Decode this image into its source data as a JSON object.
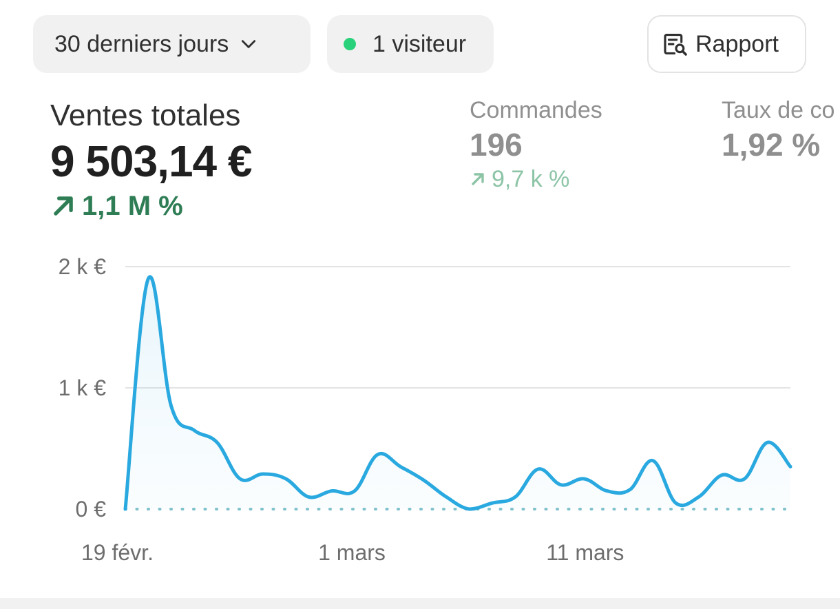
{
  "filters": {
    "date_range": "30 derniers jours",
    "visitors": "1 visiteur",
    "report_button": "Rapport"
  },
  "metrics": {
    "total_sales": {
      "label": "Ventes totales",
      "value": "9 503,14 €",
      "delta": "1,1 M %"
    },
    "orders": {
      "label": "Commandes",
      "value": "196",
      "delta": "9,7 k %"
    },
    "conversion": {
      "label": "Taux de co",
      "value": "1,92 %"
    }
  },
  "colors": {
    "line": "#29a9df",
    "positive": "#2e7d55",
    "positive_muted": "#8cc4a6",
    "live_dot": "#29d17a"
  },
  "chart_data": {
    "type": "line",
    "x_ticks": [
      "19 févr.",
      "1 mars",
      "11 mars"
    ],
    "y_ticks": [
      "2 k €",
      "1 k €",
      "0 €"
    ],
    "ylim": [
      0,
      2000
    ],
    "series": [
      {
        "values": [
          0,
          1900,
          850,
          650,
          550,
          250,
          290,
          250,
          100,
          150,
          150,
          450,
          350,
          240,
          100,
          0,
          50,
          100,
          330,
          200,
          250,
          150,
          160,
          400,
          50,
          100,
          280,
          250,
          550,
          350
        ]
      }
    ],
    "comparison_baseline": 0,
    "grid": true
  }
}
